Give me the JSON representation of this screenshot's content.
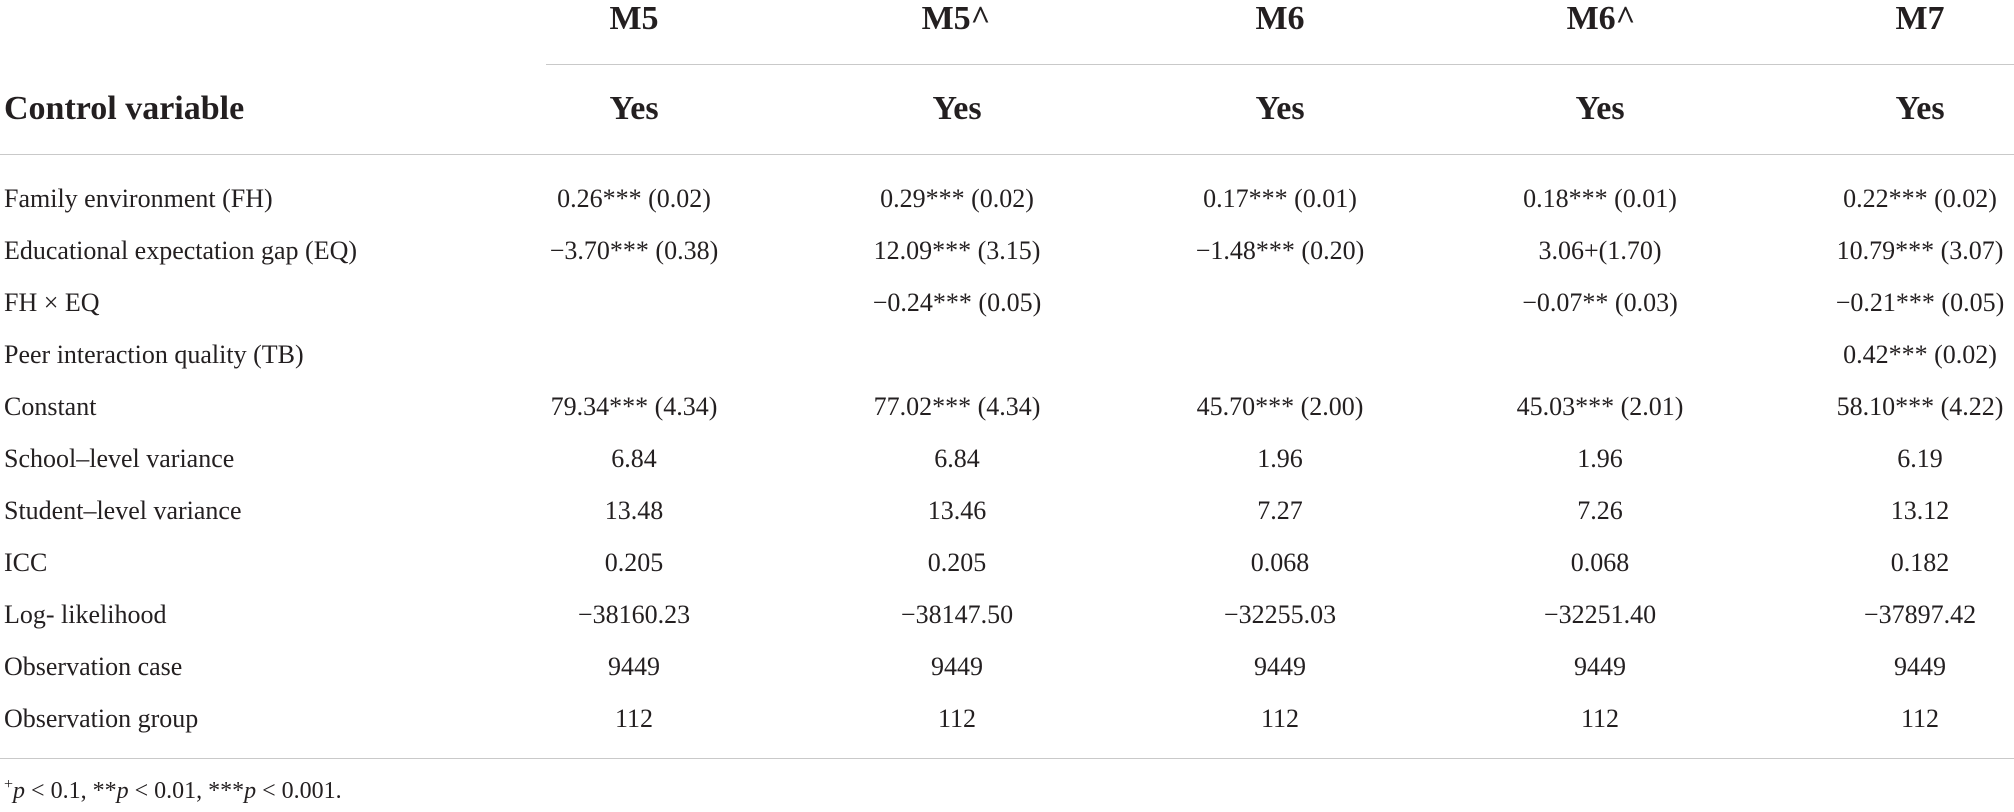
{
  "table": {
    "columns": [
      "M5",
      "M5^",
      "M6",
      "M6^",
      "M7"
    ],
    "control_label": "Control variable",
    "control_values": [
      "Yes",
      "Yes",
      "Yes",
      "Yes",
      "Yes"
    ],
    "rows": [
      {
        "label": "Family environment (FH)",
        "values": [
          "0.26*** (0.02)",
          "0.29*** (0.02)",
          "0.17*** (0.01)",
          "0.18*** (0.01)",
          "0.22*** (0.02)"
        ]
      },
      {
        "label": "Educational expectation gap (EQ)",
        "values": [
          "−3.70*** (0.38)",
          "12.09*** (3.15)",
          "−1.48*** (0.20)",
          "3.06+(1.70)",
          "10.79*** (3.07)"
        ]
      },
      {
        "label": "FH × EQ",
        "values": [
          "",
          "−0.24*** (0.05)",
          "",
          "−0.07** (0.03)",
          "−0.21*** (0.05)"
        ]
      },
      {
        "label": "Peer interaction quality (TB)",
        "values": [
          "",
          "",
          "",
          "",
          "0.42*** (0.02)"
        ]
      },
      {
        "label": "Constant",
        "values": [
          "79.34*** (4.34)",
          "77.02*** (4.34)",
          "45.70*** (2.00)",
          "45.03*** (2.01)",
          "58.10*** (4.22)"
        ]
      },
      {
        "label": "School–level variance",
        "values": [
          "6.84",
          "6.84",
          "1.96",
          "1.96",
          "6.19"
        ]
      },
      {
        "label": "Student–level variance",
        "values": [
          "13.48",
          "13.46",
          "7.27",
          "7.26",
          "13.12"
        ]
      },
      {
        "label": "ICC",
        "values": [
          "0.205",
          "0.205",
          "0.068",
          "0.068",
          "0.182"
        ]
      },
      {
        "label": "Log- likelihood",
        "values": [
          "−38160.23",
          "−38147.50",
          "−32255.03",
          "−32251.40",
          "−37897.42"
        ]
      },
      {
        "label": "Observation case",
        "values": [
          "9449",
          "9449",
          "9449",
          "9449",
          "9449"
        ]
      },
      {
        "label": "Observation group",
        "values": [
          "112",
          "112",
          "112",
          "112",
          "112"
        ]
      }
    ]
  },
  "footnote": {
    "sym1": "+",
    "p1": "p",
    "t1": " < 0.1, **",
    "p2": "p",
    "t2": " < 0.01, ***",
    "p3": "p",
    "t3": " < 0.001."
  }
}
